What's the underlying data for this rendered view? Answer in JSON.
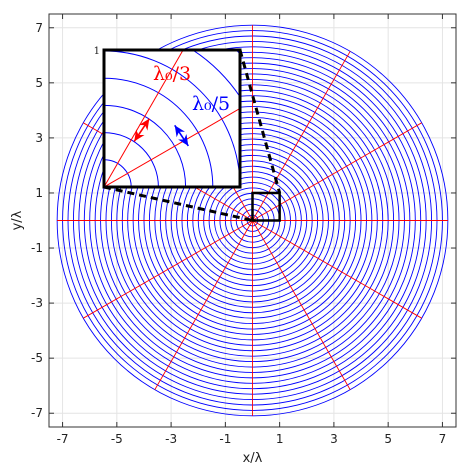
{
  "chart_data": {
    "type": "line",
    "title": "",
    "xlabel": "x/λ",
    "ylabel": "y/λ",
    "xlim": [
      -7.5,
      7.5
    ],
    "ylim": [
      -7.5,
      7.5
    ],
    "x_ticks": [
      -7,
      -5,
      -3,
      -1,
      1,
      3,
      5,
      7
    ],
    "y_ticks": [
      -7,
      -5,
      -3,
      -1,
      1,
      3,
      5,
      7
    ],
    "x_tick_labels": [
      "-7",
      "-5",
      "-3",
      "-1",
      "1",
      "3",
      "5",
      "7"
    ],
    "y_tick_labels": [
      "-7",
      "-5",
      "-3",
      "-1",
      "1",
      "3",
      "5",
      "7"
    ],
    "grid": true,
    "series": [
      {
        "color": "#0000ff",
        "kind": "concentric circles",
        "radii": [
          0.2,
          0.4,
          0.6,
          0.8,
          1.0,
          1.2,
          1.4,
          1.6,
          1.8,
          2.0,
          2.2,
          2.4,
          2.6,
          2.8,
          3.0,
          3.2,
          3.4,
          3.6,
          3.8,
          4.0,
          4.2,
          4.4,
          4.6,
          4.8,
          5.0,
          5.2,
          5.4,
          5.6,
          5.8,
          6.0,
          6.2,
          6.4,
          6.6,
          6.8,
          7.0,
          7.2
        ]
      },
      {
        "color": "#ff0000",
        "kind": "radial lines",
        "angles_deg": [
          0,
          30,
          60,
          90,
          120,
          150,
          180,
          210,
          240,
          270,
          300,
          330
        ],
        "r_max": 7.2
      }
    ],
    "zoom_box": {
      "x": [
        0,
        1
      ],
      "y": [
        0,
        1
      ]
    },
    "inset": {
      "tick_label": "1",
      "label_red": "λ₀/3",
      "label_blue": "λ₀/5",
      "label_red_color": "#ff0000",
      "label_blue_color": "#0000ff"
    }
  }
}
